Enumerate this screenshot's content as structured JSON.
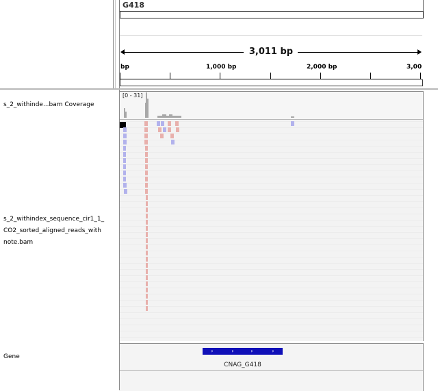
{
  "header": {
    "locus_name": "G418",
    "span_label": "3,011 bp",
    "ruler_ticks": [
      "bp",
      "1,000 bp",
      "2,000 bp",
      "3,00"
    ]
  },
  "tracks": {
    "coverage": {
      "label": "s_2_withinde...bam Coverage",
      "range": "[0 - 31]"
    },
    "alignment": {
      "label_lines": [
        "s_2_withindex_sequence_cir1_1_",
        "CO2_sorted_aligned_reads_with",
        "note.bam"
      ]
    },
    "gene": {
      "label": "Gene",
      "feature_name": "CNAG_G418"
    }
  },
  "colors": {
    "forward_read": "#e8b0ac",
    "reverse_read": "#b2b2ec",
    "gene_feature": "#1010b8",
    "coverage": "#a8a8a8"
  }
}
